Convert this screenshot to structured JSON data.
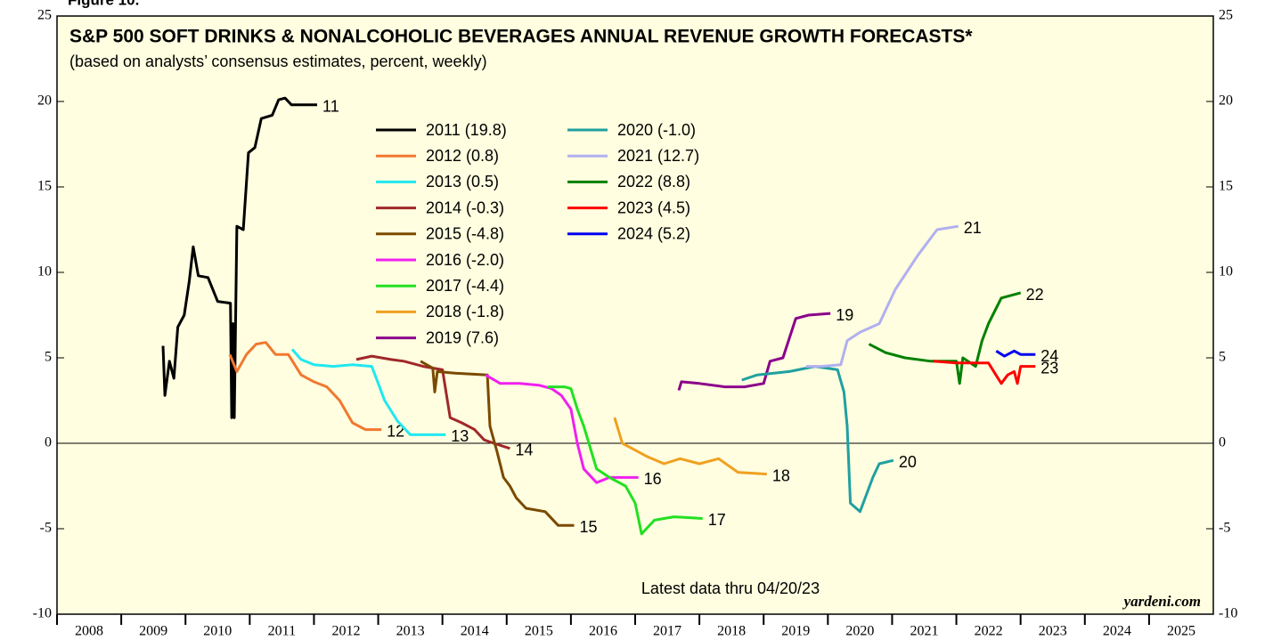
{
  "chart_data": {
    "type": "line",
    "figure_label": "Figure 10.",
    "title": "S&P 500 SOFT DRINKS & NONALCOHOLIC BEVERAGES ANNUAL REVENUE GROWTH FORECASTS*",
    "subtitle": "(based on analysts’ consensus estimates, percent, weekly)",
    "annotation": "Latest data thru 04/20/23",
    "source": "yardeni.com",
    "xlim": [
      2008,
      2026
    ],
    "xticks": [
      {
        "value": 2008.5,
        "label": "2008"
      },
      {
        "value": 2009.5,
        "label": "2009"
      },
      {
        "value": 2010.5,
        "label": "2010"
      },
      {
        "value": 2011.5,
        "label": "2011"
      },
      {
        "value": 2012.5,
        "label": "2012"
      },
      {
        "value": 2013.5,
        "label": "2013"
      },
      {
        "value": 2014.5,
        "label": "2014"
      },
      {
        "value": 2015.5,
        "label": "2015"
      },
      {
        "value": 2016.5,
        "label": "2016"
      },
      {
        "value": 2017.5,
        "label": "2017"
      },
      {
        "value": 2018.5,
        "label": "2018"
      },
      {
        "value": 2019.5,
        "label": "2019"
      },
      {
        "value": 2020.5,
        "label": "2020"
      },
      {
        "value": 2021.5,
        "label": "2021"
      },
      {
        "value": 2022.5,
        "label": "2022"
      },
      {
        "value": 2023.5,
        "label": "2023"
      },
      {
        "value": 2024.5,
        "label": "2024"
      },
      {
        "value": 2025.5,
        "label": "2025"
      }
    ],
    "ylim": [
      -10,
      25
    ],
    "yticks": [
      -10,
      -5,
      0,
      5,
      10,
      15,
      20,
      25
    ],
    "series": [
      {
        "name": "2011 (19.8)",
        "label": "11",
        "color": "#000000",
        "x": [
          2009.65,
          2009.68,
          2009.75,
          2009.82,
          2009.88,
          2009.98,
          2010.06,
          2010.12,
          2010.2,
          2010.35,
          2010.5,
          2010.7,
          2010.72,
          2010.74,
          2010.76,
          2010.8,
          2010.9,
          2010.98,
          2011.08,
          2011.18,
          2011.35,
          2011.45,
          2011.55,
          2011.65,
          2012.05
        ],
        "values": [
          5.7,
          2.8,
          4.8,
          3.8,
          6.8,
          7.5,
          9.5,
          11.5,
          9.8,
          9.7,
          8.3,
          8.2,
          1.5,
          7,
          1.5,
          12.7,
          12.5,
          17,
          17.3,
          19,
          19.2,
          20.1,
          20.2,
          19.8,
          19.8
        ]
      },
      {
        "name": "2012 (0.8)",
        "label": "12",
        "color": "#f07830",
        "x": [
          2010.69,
          2010.8,
          2010.95,
          2011.1,
          2011.25,
          2011.4,
          2011.6,
          2011.8,
          2012.0,
          2012.2,
          2012.4,
          2012.6,
          2012.8,
          2013.05
        ],
        "values": [
          5.2,
          4.2,
          5.2,
          5.8,
          5.9,
          5.2,
          5.2,
          4,
          3.6,
          3.3,
          2.5,
          1.2,
          0.8,
          0.8
        ]
      },
      {
        "name": "2013 (0.5)",
        "label": "13",
        "color": "#20e8f0",
        "x": [
          2011.66,
          2011.8,
          2012.0,
          2012.3,
          2012.6,
          2012.9,
          2013.0,
          2013.1,
          2013.3,
          2013.5,
          2014.05
        ],
        "values": [
          5.5,
          4.9,
          4.6,
          4.5,
          4.6,
          4.5,
          3.5,
          2.5,
          1.3,
          0.5,
          0.5
        ]
      },
      {
        "name": "2014 (-0.3)",
        "label": "14",
        "color": "#a0282a",
        "x": [
          2012.66,
          2012.9,
          2013.2,
          2013.4,
          2013.7,
          2014.0,
          2014.12,
          2014.3,
          2014.5,
          2014.65,
          2014.8,
          2015.05
        ],
        "values": [
          4.9,
          5.1,
          4.9,
          4.8,
          4.5,
          4.3,
          1.5,
          1.2,
          0.8,
          0.2,
          0,
          -0.3
        ]
      },
      {
        "name": "2015 (-4.8)",
        "label": "15",
        "color": "#7a4a00",
        "x": [
          2013.66,
          2013.85,
          2013.88,
          2013.92,
          2014.2,
          2014.7,
          2014.74,
          2014.85,
          2014.95,
          2015.05,
          2015.15,
          2015.3,
          2015.6,
          2015.8,
          2016.05
        ],
        "values": [
          4.8,
          4.4,
          3,
          4.2,
          4.1,
          4.0,
          1,
          -0.5,
          -2,
          -2.5,
          -3.2,
          -3.8,
          -4,
          -4.8,
          -4.8
        ]
      },
      {
        "name": "2016 (-2.0)",
        "label": "16",
        "color": "#f020f0",
        "x": [
          2014.67,
          2014.9,
          2015.2,
          2015.5,
          2015.7,
          2015.85,
          2016.0,
          2016.1,
          2016.2,
          2016.4,
          2016.6,
          2017.05
        ],
        "values": [
          4,
          3.5,
          3.5,
          3.4,
          3.2,
          2.8,
          2,
          0,
          -1.5,
          -2.3,
          -2,
          -2
        ]
      },
      {
        "name": "2017 (-4.4)",
        "label": "17",
        "color": "#22e022",
        "x": [
          2015.64,
          2015.9,
          2016.0,
          2016.1,
          2016.2,
          2016.4,
          2016.6,
          2016.85,
          2017.0,
          2017.1,
          2017.3,
          2017.6,
          2018.05
        ],
        "values": [
          3.3,
          3.3,
          3.2,
          2,
          1,
          -1.5,
          -2,
          -2.5,
          -3.5,
          -5.3,
          -4.5,
          -4.3,
          -4.4
        ]
      },
      {
        "name": "2018 (-1.8)",
        "label": "18",
        "color": "#f0a020",
        "x": [
          2016.68,
          2016.8,
          2016.95,
          2017.2,
          2017.45,
          2017.7,
          2018.0,
          2018.3,
          2018.6,
          2019.05
        ],
        "values": [
          1.5,
          0,
          -0.3,
          -0.8,
          -1.2,
          -0.9,
          -1.2,
          -0.9,
          -1.7,
          -1.8
        ]
      },
      {
        "name": "2019 (7.6)",
        "label": "19",
        "color": "#8b008b",
        "x": [
          2017.68,
          2017.72,
          2018.0,
          2018.4,
          2018.7,
          2019.0,
          2019.1,
          2019.3,
          2019.5,
          2019.7,
          2020.04
        ],
        "values": [
          3.1,
          3.6,
          3.5,
          3.3,
          3.3,
          3.5,
          4.8,
          5,
          7.3,
          7.5,
          7.6
        ]
      },
      {
        "name": "2020 (-1.0)",
        "label": "20",
        "color": "#20a0a0",
        "x": [
          2018.66,
          2018.9,
          2019.4,
          2019.8,
          2020.15,
          2020.25,
          2020.3,
          2020.35,
          2020.5,
          2020.6,
          2020.7,
          2020.8,
          2021.02
        ],
        "values": [
          3.7,
          4,
          4.2,
          4.5,
          4.3,
          3,
          1,
          -3.5,
          -4,
          -3,
          -2,
          -1.2,
          -1
        ]
      },
      {
        "name": "2021 (12.7)",
        "label": "21",
        "color": "#b0b0f0",
        "x": [
          2019.66,
          2019.9,
          2020.2,
          2020.3,
          2020.5,
          2020.8,
          2021.05,
          2021.4,
          2021.7,
          2022.03
        ],
        "values": [
          4.5,
          4.5,
          4.6,
          6,
          6.5,
          7,
          9,
          11,
          12.5,
          12.7
        ]
      },
      {
        "name": "2022 (8.8)",
        "label": "22",
        "color": "#008000",
        "x": [
          2020.64,
          2020.9,
          2021.2,
          2021.6,
          2022.0,
          2022.05,
          2022.1,
          2022.3,
          2022.4,
          2022.5,
          2022.7,
          2023.0
        ],
        "values": [
          5.8,
          5.3,
          5.0,
          4.8,
          4.8,
          3.5,
          5,
          4.5,
          6,
          7,
          8.5,
          8.8
        ]
      },
      {
        "name": "2023 (4.5)",
        "label": "23",
        "color": "#ff0000",
        "x": [
          2021.64,
          2022.0,
          2022.5,
          2022.7,
          2022.8,
          2022.9,
          2022.95,
          2023.0,
          2023.23
        ],
        "values": [
          4.8,
          4.7,
          4.7,
          3.5,
          4,
          4.2,
          3.5,
          4.5,
          4.5
        ]
      },
      {
        "name": "2024 (5.2)",
        "label": "24",
        "color": "#0000ee",
        "x": [
          2022.62,
          2022.75,
          2022.9,
          2023.0,
          2023.23
        ],
        "values": [
          5.4,
          5.1,
          5.4,
          5.2,
          5.2
        ]
      }
    ]
  }
}
